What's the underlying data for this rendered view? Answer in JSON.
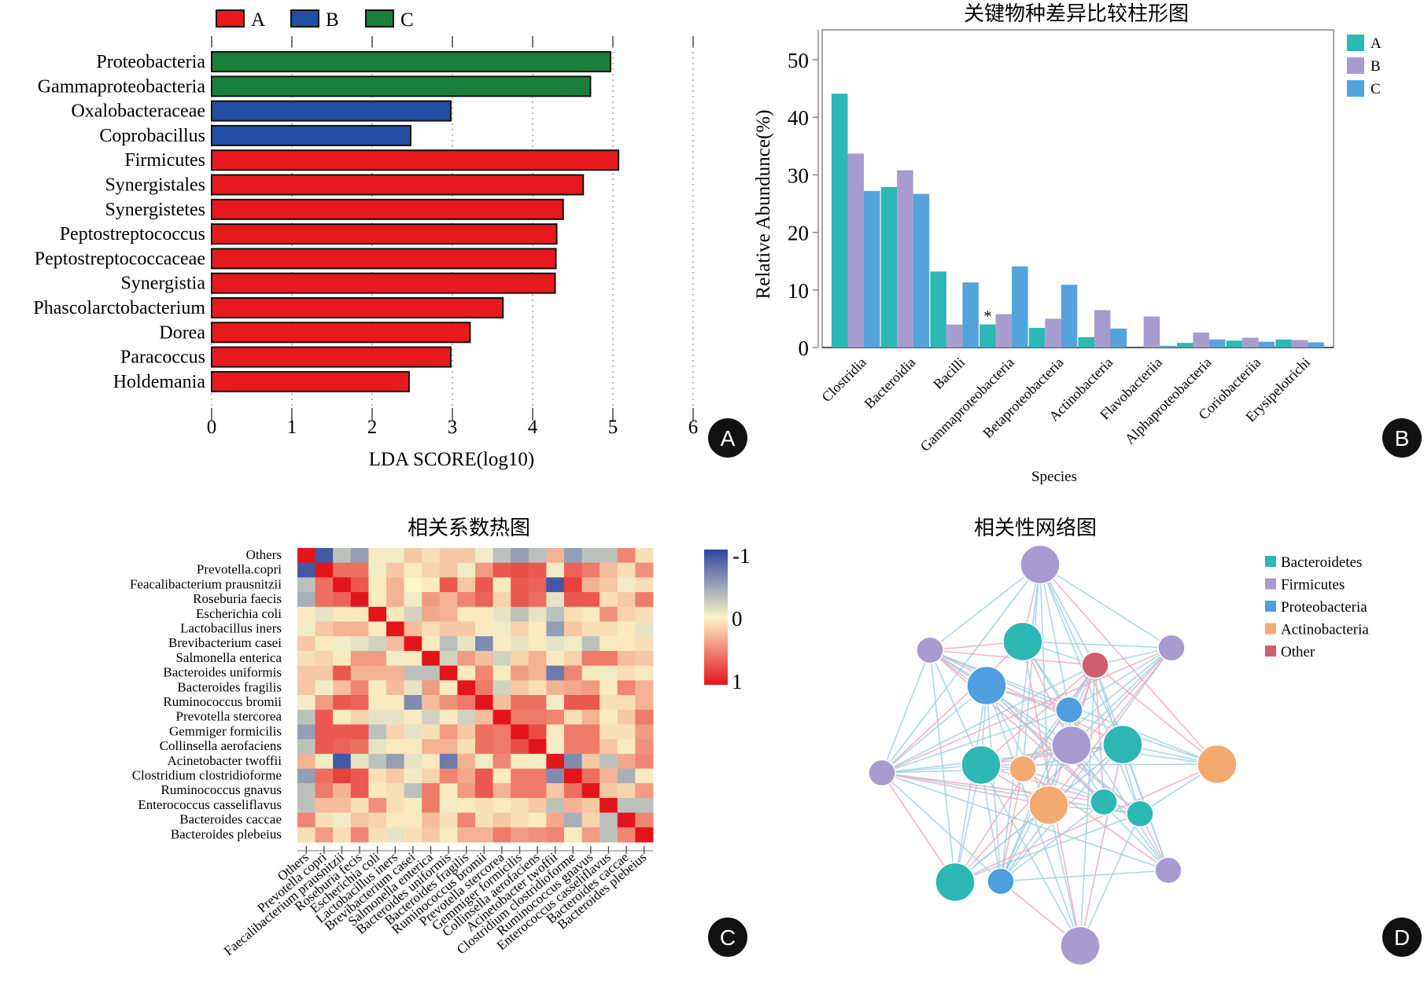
{
  "panels": {
    "A": "A",
    "B": "B",
    "C": "C",
    "D": "D"
  },
  "chart_data": [
    {
      "id": "A",
      "type": "bar",
      "orientation": "horizontal",
      "title": "",
      "xlabel": "LDA SCORE(log10)",
      "ylabel": "",
      "xlim": [
        0,
        6
      ],
      "xticks": [
        "0",
        "1",
        "2",
        "3",
        "4",
        "5",
        "6"
      ],
      "grid": "dotted vertical at each integer",
      "legend": {
        "placement": "top",
        "entries": [
          {
            "name": "A",
            "color": "#e8191c"
          },
          {
            "name": "B",
            "color": "#1f4ea3"
          },
          {
            "name": "C",
            "color": "#1a7f3b"
          }
        ]
      },
      "categories": [
        "Proteobacteria",
        "Gammaproteobacteria",
        "Oxalobacteraceae",
        "Coprobacillus",
        "Firmicutes",
        "Synergistales",
        "Synergistetes",
        "Peptostreptococcus",
        "Peptostreptococcaceae",
        "Synergistia",
        "Phascolarctobacterium",
        "Dorea",
        "Paracoccus",
        "Holdemania"
      ],
      "groups": [
        "C",
        "C",
        "B",
        "B",
        "A",
        "A",
        "A",
        "A",
        "A",
        "A",
        "A",
        "A",
        "A",
        "A"
      ],
      "values": [
        4.97,
        4.72,
        2.98,
        2.48,
        5.07,
        4.63,
        4.38,
        4.3,
        4.29,
        4.28,
        3.63,
        3.22,
        2.98,
        2.46
      ]
    },
    {
      "id": "B",
      "type": "bar",
      "title": "关键物种差异比较柱形图",
      "xlabel": "Species",
      "ylabel": "Relative Abundunce(%)",
      "ylim": [
        0,
        55
      ],
      "yticks": [
        "0",
        "10",
        "20",
        "30",
        "40",
        "50"
      ],
      "grid": false,
      "legend": {
        "placement": "right-top"
      },
      "categories": [
        "Clostridia",
        "Bacteroidia",
        "Bacilli",
        "Gammaproteobacteria",
        "Betaproteobacteria",
        "Actinobacteria",
        "Flavobacteriia",
        "Alphaproteobacteria",
        "Coriobacteriia",
        "Erysipelotrichi"
      ],
      "series": [
        {
          "name": "A",
          "color": "#2db7b5",
          "values": [
            44.1,
            27.9,
            13.2,
            4.0,
            3.4,
            1.8,
            0.0,
            0.8,
            1.2,
            1.4
          ]
        },
        {
          "name": "B",
          "color": "#a89bd0",
          "values": [
            33.7,
            30.8,
            4.0,
            5.8,
            5.0,
            6.5,
            5.4,
            2.6,
            1.7,
            1.3
          ]
        },
        {
          "name": "C",
          "color": "#55a3dc",
          "values": [
            27.2,
            26.7,
            11.3,
            14.1,
            10.9,
            3.3,
            0.3,
            1.4,
            1.0,
            0.9
          ]
        }
      ],
      "annotations": [
        {
          "category": "Gammaproteobacteria",
          "series": "A",
          "text": "*"
        }
      ]
    },
    {
      "id": "C",
      "type": "heatmap",
      "title": "相关系数热图",
      "colorbar": {
        "min": 1,
        "mid": 0,
        "max": -1,
        "labels": [
          "-1",
          "0",
          "1"
        ],
        "colors": [
          "#2d46a0",
          "#fbf5c8",
          "#e3151b"
        ]
      },
      "row_labels": [
        "Others",
        "Prevotella.copri",
        "Feacalibacterium prausnitzii",
        "Roseburia faecis",
        "Escherichia coli",
        "Lactobacillus iners",
        "Brevibacterium casei",
        "Salmonella enterica",
        "Bacteroides uniformis",
        "Bacteroides fragilis",
        "Ruminococcus bromii",
        "Prevotella stercorea",
        "Gemmiger formicilis",
        "Collinsella aerofaciens",
        "Acinetobacter twoffii",
        "Clostridium clostridioforme",
        "Ruminococcus gnavus",
        "Enterococcus casseliflavus",
        "Bacteroides caccae",
        "Bacteroides plebeius"
      ],
      "col_labels": [
        "Others",
        "Prevotella copri",
        "Faecalibacterium prausnitzii",
        "Roseburia fecis",
        "Escherichia coli",
        "Lactobacillus iners",
        "Brevibacterium casei",
        "Salmonella enterica",
        "Bacteroides uniformis",
        "Bacteroides fragilis",
        "Ruminococcus bromii",
        "Prevotella stercorea",
        "Gemmiger formicilis",
        "Collinsella aerofaciens",
        "Acinetobacter twoffii",
        "Clostridium clostridioforme",
        "Ruminococcus gnavus",
        "Enterococcus casseliflavus",
        "Bacteroides caccae",
        "Bacteroides plebeius"
      ],
      "values": [
        [
          1.0,
          -0.9,
          -0.3,
          -0.5,
          0.05,
          -0.05,
          0.2,
          0.1,
          0.2,
          0.2,
          -0.05,
          -0.3,
          -0.5,
          -0.3,
          0.3,
          -0.5,
          -0.3,
          -0.3,
          0.5,
          0.1
        ],
        [
          -0.9,
          1.0,
          0.6,
          0.6,
          -0.05,
          0.2,
          0.05,
          0.15,
          0.2,
          -0.05,
          0.4,
          0.7,
          0.75,
          0.7,
          -0.05,
          0.65,
          0.55,
          0.25,
          0.1,
          0.45
        ],
        [
          -0.3,
          0.6,
          1.0,
          0.7,
          0.05,
          0.3,
          0.0,
          0.05,
          0.7,
          0.2,
          0.7,
          0.05,
          0.7,
          0.65,
          -0.9,
          0.8,
          0.3,
          0.2,
          -0.05,
          0.1
        ],
        [
          -0.4,
          0.6,
          0.65,
          1.0,
          0.05,
          0.3,
          -0.05,
          0.4,
          0.3,
          0.5,
          0.65,
          0.15,
          0.7,
          0.6,
          -0.1,
          0.7,
          0.7,
          0.1,
          0.2,
          0.55
        ],
        [
          0.05,
          -0.1,
          0.05,
          0.05,
          1.0,
          0.05,
          -0.2,
          0.35,
          0.3,
          0.05,
          0.05,
          -0.1,
          -0.3,
          -0.1,
          -0.3,
          0.1,
          0.05,
          0.45,
          0.15,
          0.1
        ],
        [
          -0.05,
          0.2,
          0.3,
          0.3,
          0.05,
          1.0,
          0.25,
          0.1,
          0.2,
          0.2,
          0.05,
          -0.05,
          0.15,
          0.05,
          -0.5,
          0.2,
          0.1,
          0.1,
          0.05,
          -0.1
        ],
        [
          0.2,
          0.05,
          -0.05,
          -0.1,
          -0.2,
          0.25,
          1.0,
          0.05,
          -0.3,
          -0.1,
          -0.6,
          0.05,
          -0.1,
          0.05,
          -0.1,
          -0.05,
          -0.3,
          0.05,
          0.05,
          0.1
        ],
        [
          0.1,
          0.15,
          0.05,
          0.4,
          0.4,
          -0.05,
          0.05,
          1.0,
          -0.2,
          0.4,
          0.25,
          -0.2,
          0.15,
          0.3,
          0.05,
          0.15,
          0.55,
          0.55,
          0.25,
          0.2
        ],
        [
          0.2,
          0.2,
          0.7,
          0.3,
          0.3,
          0.3,
          -0.3,
          -0.3,
          1.0,
          0.05,
          0.5,
          0.05,
          0.4,
          0.3,
          -0.7,
          0.5,
          0.05,
          -0.05,
          0.1,
          0.05
        ],
        [
          0.2,
          -0.05,
          0.25,
          0.5,
          0.05,
          0.25,
          -0.1,
          0.4,
          0.05,
          1.0,
          0.55,
          -0.2,
          0.2,
          0.1,
          0.3,
          0.35,
          0.4,
          0.05,
          0.5,
          0.3
        ],
        [
          -0.05,
          0.4,
          0.7,
          0.65,
          0.05,
          0.05,
          -0.6,
          0.25,
          0.45,
          0.55,
          1.0,
          0.25,
          0.6,
          0.6,
          -0.05,
          0.7,
          0.7,
          0.1,
          0.1,
          0.3
        ],
        [
          -0.3,
          0.7,
          0.05,
          0.15,
          -0.1,
          -0.1,
          0.05,
          -0.2,
          0.05,
          -0.2,
          0.25,
          1.0,
          0.55,
          0.55,
          0.5,
          0.1,
          0.3,
          0.05,
          0.2,
          0.55
        ],
        [
          -0.5,
          0.7,
          0.7,
          0.7,
          -0.3,
          0.15,
          -0.1,
          0.1,
          0.4,
          0.2,
          0.6,
          0.55,
          1.0,
          0.75,
          0.05,
          0.55,
          0.55,
          0.1,
          0.1,
          0.4
        ],
        [
          -0.3,
          0.7,
          0.65,
          0.6,
          -0.1,
          0.05,
          0.05,
          0.3,
          0.3,
          0.1,
          0.6,
          0.55,
          0.75,
          1.0,
          -0.05,
          0.55,
          0.55,
          0.2,
          0.05,
          0.45
        ],
        [
          0.3,
          -0.05,
          -0.9,
          -0.1,
          -0.3,
          -0.5,
          -0.1,
          0.05,
          -0.7,
          0.3,
          -0.05,
          0.5,
          0.05,
          -0.05,
          1.0,
          -0.6,
          0.2,
          -0.3,
          0.35,
          0.5
        ],
        [
          -0.5,
          0.6,
          0.8,
          0.7,
          0.1,
          0.2,
          -0.05,
          0.15,
          0.5,
          0.35,
          0.7,
          0.05,
          0.55,
          0.55,
          -0.6,
          1.0,
          0.6,
          0.3,
          -0.4,
          0.05
        ],
        [
          -0.3,
          0.55,
          0.3,
          0.7,
          0.05,
          0.1,
          -0.3,
          0.55,
          0.05,
          0.4,
          0.7,
          0.3,
          0.55,
          0.55,
          0.2,
          0.6,
          1.0,
          0.2,
          0.15,
          0.4
        ],
        [
          -0.3,
          0.25,
          0.25,
          0.1,
          0.45,
          0.1,
          0.05,
          0.55,
          -0.05,
          0.05,
          0.1,
          0.05,
          0.1,
          0.2,
          -0.3,
          0.3,
          0.2,
          1.0,
          -0.3,
          -0.3
        ],
        [
          0.5,
          0.1,
          -0.05,
          0.2,
          0.15,
          0.05,
          0.05,
          0.25,
          0.1,
          0.5,
          0.1,
          0.2,
          0.1,
          0.05,
          0.35,
          -0.4,
          0.15,
          -0.3,
          1.0,
          0.5
        ],
        [
          0.1,
          0.4,
          0.1,
          0.5,
          0.1,
          -0.1,
          0.1,
          0.2,
          0.05,
          0.3,
          0.3,
          0.55,
          0.4,
          0.45,
          0.5,
          0.05,
          0.4,
          -0.3,
          0.5,
          1.0
        ]
      ]
    },
    {
      "id": "D",
      "type": "network",
      "title": "相关性网络图",
      "legend": {
        "placement": "right-top",
        "entries": [
          {
            "name": "Bacteroidetes",
            "color": "#2db7b5"
          },
          {
            "name": "Firmicutes",
            "color": "#a89bd0"
          },
          {
            "name": "Proteobacteria",
            "color": "#4f9ede"
          },
          {
            "name": "Actinobacteria",
            "color": "#f3aa70"
          },
          {
            "name": "Other",
            "color": "#cf5f6b"
          }
        ]
      },
      "edge_colors": {
        "positive": "#9fd0e3",
        "negative": "#f0a9bd"
      },
      "nodes": [
        {
          "id": 0,
          "group": "Firmicutes",
          "size": 3
        },
        {
          "id": 1,
          "group": "Firmicutes",
          "size": 2
        },
        {
          "id": 2,
          "group": "Bacteroidetes",
          "size": 3
        },
        {
          "id": 3,
          "group": "Firmicutes",
          "size": 2
        },
        {
          "id": 4,
          "group": "Other",
          "size": 2
        },
        {
          "id": 5,
          "group": "Proteobacteria",
          "size": 3
        },
        {
          "id": 6,
          "group": "Proteobacteria",
          "size": 2
        },
        {
          "id": 7,
          "group": "Firmicutes",
          "size": 3
        },
        {
          "id": 8,
          "group": "Bacteroidetes",
          "size": 3
        },
        {
          "id": 9,
          "group": "Firmicutes",
          "size": 2
        },
        {
          "id": 10,
          "group": "Bacteroidetes",
          "size": 3
        },
        {
          "id": 11,
          "group": "Actinobacteria",
          "size": 2
        },
        {
          "id": 12,
          "group": "Actinobacteria",
          "size": 3
        },
        {
          "id": 13,
          "group": "Actinobacteria",
          "size": 3
        },
        {
          "id": 14,
          "group": "Bacteroidetes",
          "size": 2
        },
        {
          "id": 15,
          "group": "Bacteroidetes",
          "size": 2
        },
        {
          "id": 16,
          "group": "Bacteroidetes",
          "size": 3
        },
        {
          "id": 17,
          "group": "Proteobacteria",
          "size": 2
        },
        {
          "id": 18,
          "group": "Firmicutes",
          "size": 2
        },
        {
          "id": 19,
          "group": "Firmicutes",
          "size": 3
        }
      ]
    }
  ]
}
